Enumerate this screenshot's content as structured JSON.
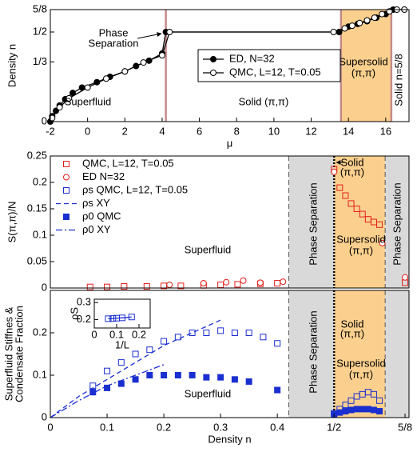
{
  "chart_data": [
    {
      "type": "line",
      "xlabel": "μ",
      "ylabel": "Density n",
      "xlim": [
        -2,
        17.25
      ],
      "xticks": [
        -2,
        0,
        2,
        4,
        6,
        8,
        10,
        12,
        14,
        16
      ],
      "ylim": [
        0,
        0.625
      ],
      "yticks": [
        0,
        {
          "value": 0.3333,
          "label": "1/3"
        },
        {
          "value": 0.5,
          "label": "1/2"
        },
        {
          "value": 0.625,
          "label": "5/8"
        }
      ],
      "regions": [
        {
          "from": 13.6,
          "to": 16.3,
          "color": "#fbd08e"
        }
      ],
      "vlines": [
        {
          "value": 4.2,
          "style": "solid",
          "color": "#c58b8b"
        },
        {
          "value": 13.6,
          "style": "solid",
          "color": "#c58b8b"
        },
        {
          "value": 16.3,
          "style": "solid",
          "color": "#c58b8b"
        }
      ],
      "series": [
        {
          "name": "ED, N=32",
          "color": "#000000",
          "marker": "filled-circle",
          "line": "solid",
          "x": [
            -2,
            -1.9,
            -1.7,
            -1.5,
            -1.2,
            -0.8,
            -0.3,
            0.5,
            1.2,
            2,
            2.6,
            3.3,
            4,
            4.2,
            13.5,
            14,
            14.5,
            15,
            15.5,
            16,
            16.4
          ],
          "values": [
            0,
            0.03,
            0.06,
            0.09,
            0.125,
            0.16,
            0.19,
            0.22,
            0.25,
            0.28,
            0.31,
            0.34,
            0.38,
            0.5,
            0.5,
            0.53,
            0.545,
            0.56,
            0.58,
            0.6,
            0.625
          ]
        },
        {
          "name": "QMC, L=12, T=0.05",
          "color": "#000000",
          "marker": "open-circle",
          "line": "solid",
          "x": [
            -1.9,
            -1.5,
            -1,
            0,
            1,
            2,
            3,
            4,
            4.4,
            13.2,
            13.8,
            14.2,
            14.6,
            15,
            15.4,
            15.8,
            16.2,
            16.6,
            17
          ],
          "values": [
            0.02,
            0.08,
            0.13,
            0.19,
            0.24,
            0.28,
            0.33,
            0.37,
            0.5,
            0.5,
            0.52,
            0.535,
            0.55,
            0.565,
            0.58,
            0.6,
            0.615,
            0.625,
            0.625
          ]
        }
      ],
      "annotations": [
        "Phase",
        "Separation",
        "Superfluid",
        "Solid (π,π)",
        "Supersolid",
        "(π,π)",
        "Solid n=5/8"
      ]
    },
    {
      "type": "scatter",
      "ylabel": "S(π,π)/N",
      "xlim": [
        0,
        0.632
      ],
      "ylim": [
        0,
        0.25
      ],
      "yticks": [
        0,
        0.05,
        0.1,
        0.15,
        0.2,
        0.25
      ],
      "regions": [
        {
          "from": 0.42,
          "to": 0.5,
          "color": "#d9d9d9"
        },
        {
          "from": 0.5,
          "to": 0.59,
          "color": "#fbd08e"
        },
        {
          "from": 0.59,
          "to": 0.632,
          "color": "#d9d9d9"
        }
      ],
      "vlines": [
        {
          "value": 0.42,
          "style": "dashed",
          "color": "#555555"
        },
        {
          "value": 0.5,
          "style": "dotted",
          "color": "#000000"
        },
        {
          "value": 0.59,
          "style": "dashed",
          "color": "#555555"
        }
      ],
      "series": [
        {
          "name": "QMC, L=12, T=0.05",
          "color": "#e0201b",
          "marker": "open-square",
          "line": "none",
          "x": [
            0.07,
            0.1,
            0.13,
            0.17,
            0.2,
            0.23,
            0.27,
            0.3,
            0.33,
            0.37,
            0.4,
            0.5,
            0.51,
            0.52,
            0.53,
            0.54,
            0.55,
            0.56,
            0.57,
            0.58,
            0.625
          ],
          "values": [
            0.002,
            0.002,
            0.003,
            0.003,
            0.004,
            0.004,
            0.005,
            0.006,
            0.007,
            0.008,
            0.009,
            0.225,
            0.19,
            0.175,
            0.16,
            0.15,
            0.14,
            0.13,
            0.125,
            0.12,
            0.01
          ]
        },
        {
          "name": "ED N=32",
          "color": "#e0201b",
          "marker": "open-circle",
          "line": "none",
          "x": [
            0.21,
            0.27,
            0.31,
            0.34,
            0.37,
            0.41,
            0.5,
            0.585,
            0.625
          ],
          "values": [
            0.006,
            0.009,
            0.011,
            0.014,
            0.01,
            0.012,
            0.22,
            0.085,
            0.02
          ]
        }
      ],
      "annotations": [
        "Phase Separation",
        "Solid",
        "(π,π)",
        "Supersolid",
        "(π,π)",
        "Phase Separation",
        "Superfluid"
      ]
    },
    {
      "type": "scatter",
      "xlabel": "Density n",
      "ylabel": [
        "Superfluid Stiffnes &",
        "Condensate Fraction"
      ],
      "xlim": [
        0,
        0.632
      ],
      "xticks": [
        0,
        0.1,
        0.2,
        0.3,
        0.4,
        {
          "value": 0.5,
          "label": "1/2"
        },
        {
          "value": 0.625,
          "label": "5/8"
        }
      ],
      "ylim": [
        0,
        0.3
      ],
      "yticks": [
        0,
        0.1,
        0.2
      ],
      "regions": [
        {
          "from": 0.42,
          "to": 0.5,
          "color": "#d9d9d9"
        },
        {
          "from": 0.5,
          "to": 0.59,
          "color": "#fbd08e"
        },
        {
          "from": 0.59,
          "to": 0.632,
          "color": "#d9d9d9"
        }
      ],
      "vlines": [
        {
          "value": 0.42,
          "style": "dashed",
          "color": "#555555"
        },
        {
          "value": 0.5,
          "style": "dotted",
          "color": "#000000"
        },
        {
          "value": 0.59,
          "style": "dashed",
          "color": "#555555"
        }
      ],
      "series": [
        {
          "name": "ρs QMC, L=12, T=0.05",
          "color": "#1a2fd0",
          "marker": "open-square",
          "line": "none",
          "x": [
            0.075,
            0.1,
            0.125,
            0.15,
            0.175,
            0.2,
            0.225,
            0.25,
            0.275,
            0.3,
            0.325,
            0.35,
            0.375,
            0.4,
            0.5,
            0.51,
            0.52,
            0.53,
            0.54,
            0.55,
            0.56,
            0.57,
            0.58
          ],
          "values": [
            0.075,
            0.11,
            0.13,
            0.15,
            0.16,
            0.18,
            0.19,
            0.2,
            0.2,
            0.205,
            0.2,
            0.2,
            0.19,
            0.175,
            0.01,
            0.02,
            0.03,
            0.04,
            0.05,
            0.055,
            0.06,
            0.055,
            0.04
          ]
        },
        {
          "name": "ρs XY",
          "color": "#1a2fd0",
          "marker": "none",
          "line": "dashed",
          "x": [
            0,
            0.05,
            0.1,
            0.15,
            0.2,
            0.25,
            0.3
          ],
          "values": [
            0,
            0.05,
            0.09,
            0.13,
            0.17,
            0.2,
            0.23
          ]
        },
        {
          "name": "ρ0 QMC",
          "color": "#1a2fd0",
          "marker": "filled-square",
          "line": "none",
          "x": [
            0.075,
            0.1,
            0.125,
            0.15,
            0.175,
            0.2,
            0.225,
            0.25,
            0.275,
            0.3,
            0.325,
            0.35,
            0.4,
            0.5,
            0.51,
            0.52,
            0.53,
            0.54,
            0.55,
            0.56,
            0.57,
            0.58
          ],
          "values": [
            0.06,
            0.07,
            0.08,
            0.09,
            0.1,
            0.1,
            0.1,
            0.1,
            0.095,
            0.095,
            0.09,
            0.085,
            0.065,
            0.008,
            0.012,
            0.015,
            0.018,
            0.02,
            0.02,
            0.02,
            0.018,
            0.015
          ]
        },
        {
          "name": "ρ0 XY",
          "color": "#1a2fd0",
          "marker": "none",
          "line": "dashdot",
          "x": [
            0,
            0.05,
            0.1,
            0.15,
            0.2
          ],
          "values": [
            0,
            0.04,
            0.075,
            0.1,
            0.125
          ]
        }
      ],
      "annotations": [
        "Phase Separation",
        "Solid",
        "(π,π)",
        "Supersolid",
        "(π,π)",
        "Superfluid"
      ]
    },
    {
      "type": "scatter",
      "xlabel": "1/L",
      "ylabel": "ρS",
      "xlim": [
        0,
        0.25
      ],
      "xticks": [
        0,
        0.1,
        0.2
      ],
      "ylim": [
        0.15,
        0.32
      ],
      "yticks": [
        0.2,
        0.3
      ],
      "series": [
        {
          "color": "#1a2fd0",
          "marker": "open-square",
          "line": "solid",
          "x": [
            0.0625,
            0.083,
            0.1,
            0.125,
            0.167
          ],
          "values": [
            0.205,
            0.206,
            0.208,
            0.21,
            0.215
          ]
        }
      ]
    }
  ]
}
